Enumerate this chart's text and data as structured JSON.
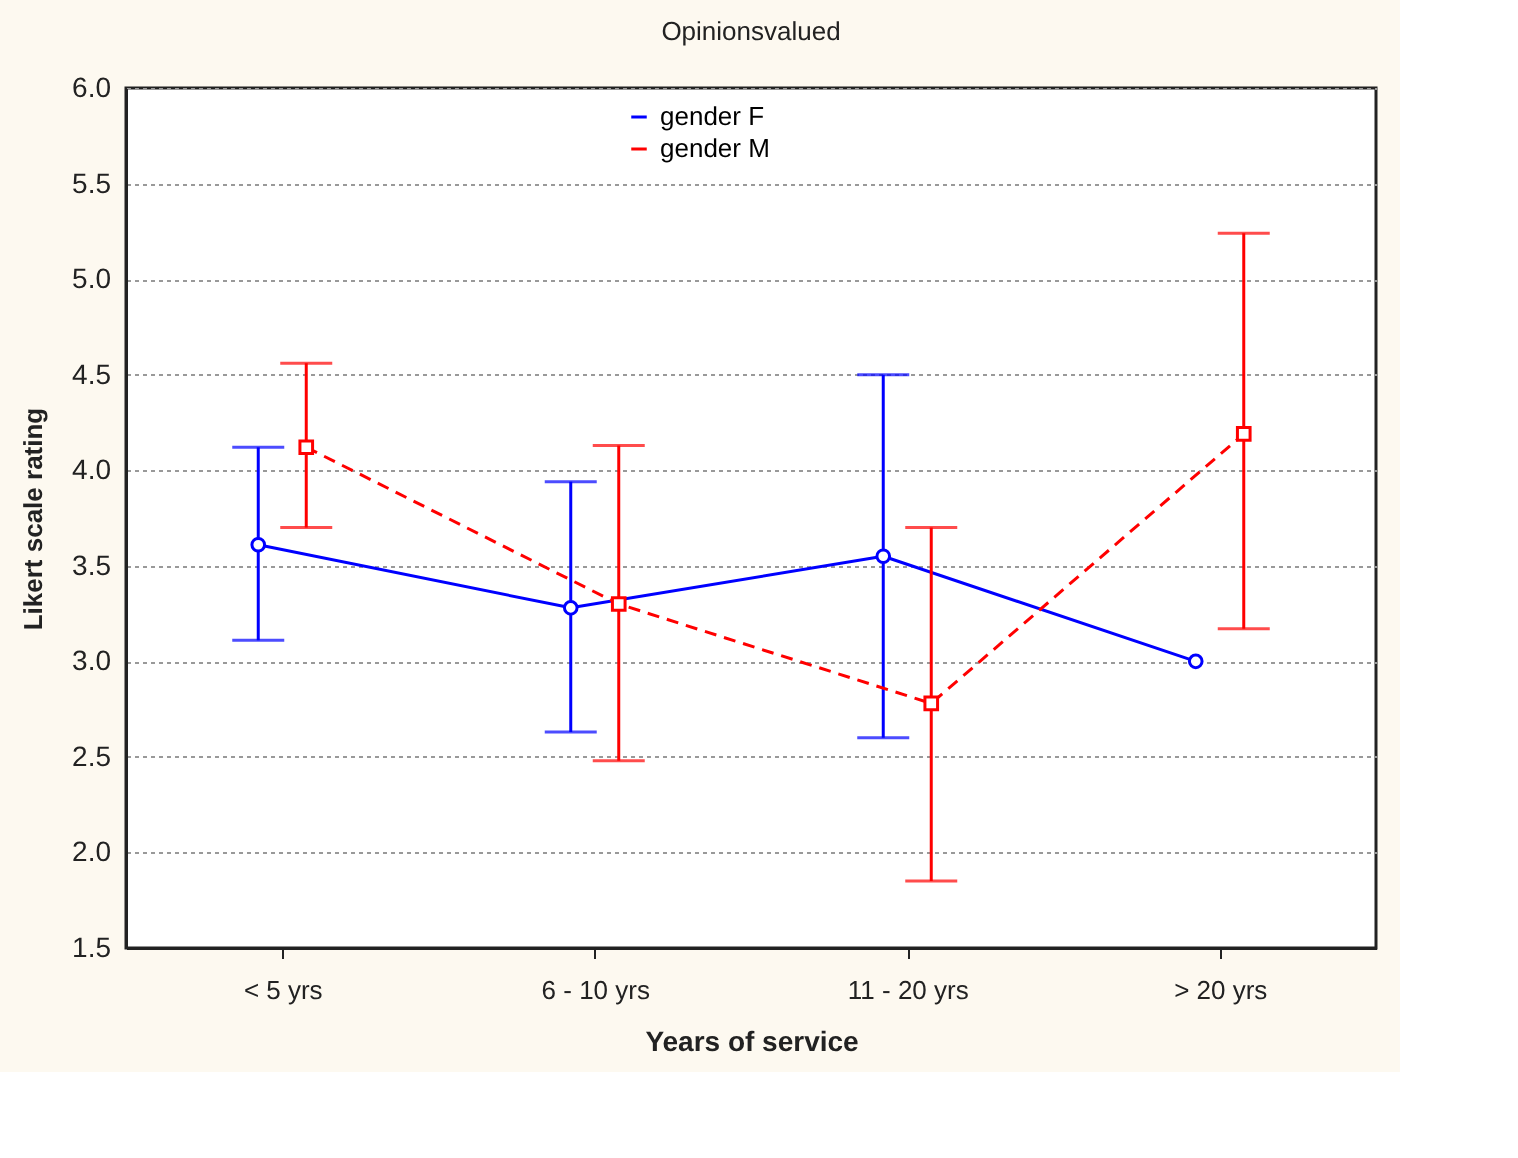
{
  "chart_data": {
    "type": "line",
    "title": "Opinionsvalued",
    "xlabel": "Years of service",
    "ylabel": "Likert scale rating",
    "categories": [
      "< 5 yrs",
      "6 - 10 yrs",
      "11 - 20 yrs",
      "> 20 yrs"
    ],
    "ylim": [
      1.5,
      6.0
    ],
    "yticks": [
      {
        "value": 1.5,
        "label": "1.5"
      },
      {
        "value": 2.0,
        "label": "2.0"
      },
      {
        "value": 2.5,
        "label": "2.5"
      },
      {
        "value": 3.0,
        "label": "3.0"
      },
      {
        "value": 3.5,
        "label": "3.5"
      },
      {
        "value": 4.0,
        "label": "4.0"
      },
      {
        "value": 4.5,
        "label": "4.5"
      },
      {
        "value": 5.0,
        "label": "5.0"
      },
      {
        "value": 5.5,
        "label": "5.5"
      },
      {
        "value": 6.0,
        "label": "6.0"
      }
    ],
    "grid": "y",
    "legend": "top",
    "series": [
      {
        "name": "gender F",
        "color": "#0000ff",
        "marker": "circle",
        "line_style": "solid",
        "values": [
          3.61,
          3.28,
          3.55,
          3.0
        ],
        "errors": [
          [
            3.11,
            4.12
          ],
          [
            2.63,
            3.94
          ],
          [
            2.6,
            4.5
          ],
          null
        ]
      },
      {
        "name": "gender M",
        "color": "#ff0000",
        "marker": "square",
        "line_style": "dashed",
        "values": [
          4.12,
          3.3,
          2.78,
          4.19
        ],
        "errors": [
          [
            3.7,
            4.56
          ],
          [
            2.48,
            4.13
          ],
          [
            1.85,
            3.7
          ],
          [
            3.17,
            5.24
          ]
        ]
      }
    ]
  }
}
